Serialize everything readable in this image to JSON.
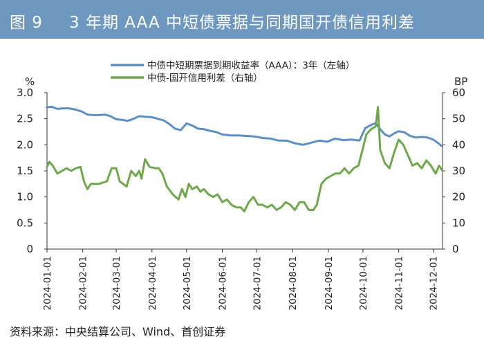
{
  "header": {
    "figure_number": "图 9",
    "title": "3 年期 AAA 中短债票据与同期国开债信用利差"
  },
  "source": "资料来源：中央结算公司、Wind、首创证券",
  "colors": {
    "title_bar": "#6e98bf",
    "series_blue": "#5b8fc7",
    "series_green": "#6fa84a"
  },
  "chart_data": {
    "type": "line",
    "x_tick_labels": [
      "2024-01-01",
      "2024-02-01",
      "2024-03-01",
      "2024-04-01",
      "2024-05-01",
      "2024-06-01",
      "2024-07-01",
      "2024-08-01",
      "2024-09-01",
      "2024-10-01",
      "2024-11-01",
      "2024-12-01"
    ],
    "left_axis": {
      "unit": "%",
      "ylim": [
        0,
        3.0
      ],
      "ticks": [
        "0",
        "0.5",
        "1.0",
        "1.5",
        "2.0",
        "2.5",
        "3.0"
      ]
    },
    "right_axis": {
      "unit": "BP",
      "ylim": [
        0,
        60
      ],
      "ticks": [
        "0",
        "10",
        "20",
        "30",
        "40",
        "50",
        "60"
      ]
    },
    "legend_position": "top-center",
    "series": [
      {
        "name": "中债中短期票据到期收益率（AAA）：3年（左轴）",
        "axis": "left",
        "color": "#5b8fc7",
        "points": [
          [
            "2024-01-01",
            2.72
          ],
          [
            "2024-01-05",
            2.73
          ],
          [
            "2024-01-10",
            2.69
          ],
          [
            "2024-01-15",
            2.7
          ],
          [
            "2024-01-20",
            2.7
          ],
          [
            "2024-01-25",
            2.68
          ],
          [
            "2024-01-31",
            2.64
          ],
          [
            "2024-02-05",
            2.58
          ],
          [
            "2024-02-10",
            2.57
          ],
          [
            "2024-02-15",
            2.57
          ],
          [
            "2024-02-20",
            2.58
          ],
          [
            "2024-02-25",
            2.55
          ],
          [
            "2024-03-01",
            2.49
          ],
          [
            "2024-03-06",
            2.48
          ],
          [
            "2024-03-11",
            2.46
          ],
          [
            "2024-03-16",
            2.5
          ],
          [
            "2024-03-21",
            2.55
          ],
          [
            "2024-03-26",
            2.54
          ],
          [
            "2024-04-01",
            2.53
          ],
          [
            "2024-04-06",
            2.5
          ],
          [
            "2024-04-11",
            2.47
          ],
          [
            "2024-04-16",
            2.4
          ],
          [
            "2024-04-21",
            2.31
          ],
          [
            "2024-04-26",
            2.28
          ],
          [
            "2024-05-01",
            2.41
          ],
          [
            "2024-05-06",
            2.37
          ],
          [
            "2024-05-11",
            2.31
          ],
          [
            "2024-05-16",
            2.3
          ],
          [
            "2024-05-21",
            2.27
          ],
          [
            "2024-05-26",
            2.25
          ],
          [
            "2024-06-01",
            2.2
          ],
          [
            "2024-06-08",
            2.18
          ],
          [
            "2024-06-15",
            2.18
          ],
          [
            "2024-06-22",
            2.17
          ],
          [
            "2024-06-29",
            2.16
          ],
          [
            "2024-07-06",
            2.13
          ],
          [
            "2024-07-13",
            2.12
          ],
          [
            "2024-07-20",
            2.08
          ],
          [
            "2024-07-27",
            2.08
          ],
          [
            "2024-08-03",
            2.03
          ],
          [
            "2024-08-10",
            2.0
          ],
          [
            "2024-08-17",
            2.04
          ],
          [
            "2024-08-24",
            2.08
          ],
          [
            "2024-08-31",
            2.06
          ],
          [
            "2024-09-07",
            2.12
          ],
          [
            "2024-09-14",
            2.09
          ],
          [
            "2024-09-21",
            2.1
          ],
          [
            "2024-09-28",
            2.08
          ],
          [
            "2024-10-03",
            2.32
          ],
          [
            "2024-10-08",
            2.38
          ],
          [
            "2024-10-12",
            2.42
          ],
          [
            "2024-10-16",
            2.3
          ],
          [
            "2024-10-20",
            2.2
          ],
          [
            "2024-10-24",
            2.16
          ],
          [
            "2024-10-28",
            2.22
          ],
          [
            "2024-11-01",
            2.26
          ],
          [
            "2024-11-06",
            2.24
          ],
          [
            "2024-11-11",
            2.17
          ],
          [
            "2024-11-16",
            2.14
          ],
          [
            "2024-11-21",
            2.15
          ],
          [
            "2024-11-26",
            2.14
          ],
          [
            "2024-12-01",
            2.1
          ],
          [
            "2024-12-06",
            2.02
          ],
          [
            "2024-12-08",
            1.98
          ]
        ]
      },
      {
        "name": "中债-国开信用利差（右轴）",
        "axis": "right",
        "color": "#6fa84a",
        "points": [
          [
            "2024-01-01",
            31.5
          ],
          [
            "2024-01-03",
            33.5
          ],
          [
            "2024-01-06",
            32
          ],
          [
            "2024-01-10",
            29
          ],
          [
            "2024-01-14",
            30
          ],
          [
            "2024-01-18",
            31
          ],
          [
            "2024-01-22",
            30
          ],
          [
            "2024-01-26",
            31
          ],
          [
            "2024-01-30",
            31.5
          ],
          [
            "2024-02-02",
            26
          ],
          [
            "2024-02-05",
            23
          ],
          [
            "2024-02-08",
            25
          ],
          [
            "2024-02-15",
            25
          ],
          [
            "2024-02-22",
            26
          ],
          [
            "2024-02-26",
            31
          ],
          [
            "2024-03-01",
            31
          ],
          [
            "2024-03-04",
            26
          ],
          [
            "2024-03-07",
            25
          ],
          [
            "2024-03-10",
            24
          ],
          [
            "2024-03-14",
            30
          ],
          [
            "2024-03-18",
            28
          ],
          [
            "2024-03-21",
            30
          ],
          [
            "2024-03-23",
            27
          ],
          [
            "2024-03-26",
            34.5
          ],
          [
            "2024-03-30",
            31.5
          ],
          [
            "2024-04-04",
            31
          ],
          [
            "2024-04-07",
            31
          ],
          [
            "2024-04-10",
            29
          ],
          [
            "2024-04-14",
            24
          ],
          [
            "2024-04-19",
            21
          ],
          [
            "2024-04-24",
            19
          ],
          [
            "2024-04-27",
            23
          ],
          [
            "2024-04-30",
            20
          ],
          [
            "2024-05-03",
            25
          ],
          [
            "2024-05-06",
            23
          ],
          [
            "2024-05-10",
            24
          ],
          [
            "2024-05-13",
            22
          ],
          [
            "2024-05-16",
            23
          ],
          [
            "2024-05-20",
            21
          ],
          [
            "2024-05-24",
            20
          ],
          [
            "2024-05-28",
            21
          ],
          [
            "2024-06-01",
            18
          ],
          [
            "2024-06-05",
            19
          ],
          [
            "2024-06-09",
            17
          ],
          [
            "2024-06-13",
            16
          ],
          [
            "2024-06-17",
            16
          ],
          [
            "2024-06-20",
            14.5
          ],
          [
            "2024-06-24",
            18
          ],
          [
            "2024-06-28",
            20
          ],
          [
            "2024-07-02",
            17
          ],
          [
            "2024-07-06",
            17
          ],
          [
            "2024-07-10",
            16
          ],
          [
            "2024-07-14",
            17
          ],
          [
            "2024-07-18",
            15
          ],
          [
            "2024-07-22",
            16
          ],
          [
            "2024-07-26",
            18
          ],
          [
            "2024-07-30",
            17
          ],
          [
            "2024-08-03",
            15
          ],
          [
            "2024-08-07",
            18
          ],
          [
            "2024-08-11",
            18
          ],
          [
            "2024-08-15",
            15
          ],
          [
            "2024-08-19",
            15
          ],
          [
            "2024-08-22",
            17
          ],
          [
            "2024-08-26",
            25
          ],
          [
            "2024-08-30",
            27
          ],
          [
            "2024-09-03",
            28
          ],
          [
            "2024-09-07",
            29
          ],
          [
            "2024-09-11",
            29
          ],
          [
            "2024-09-15",
            31
          ],
          [
            "2024-09-19",
            29
          ],
          [
            "2024-09-23",
            31
          ],
          [
            "2024-09-27",
            32
          ],
          [
            "2024-09-30",
            37
          ],
          [
            "2024-10-04",
            44
          ],
          [
            "2024-10-08",
            46
          ],
          [
            "2024-10-12",
            47
          ],
          [
            "2024-10-14",
            54.5
          ],
          [
            "2024-10-16",
            38
          ],
          [
            "2024-10-20",
            33
          ],
          [
            "2024-10-24",
            31
          ],
          [
            "2024-10-28",
            37
          ],
          [
            "2024-11-01",
            42
          ],
          [
            "2024-11-05",
            40
          ],
          [
            "2024-11-09",
            36
          ],
          [
            "2024-11-13",
            32
          ],
          [
            "2024-11-17",
            33
          ],
          [
            "2024-11-21",
            31
          ],
          [
            "2024-11-25",
            34
          ],
          [
            "2024-11-29",
            32
          ],
          [
            "2024-12-03",
            29
          ],
          [
            "2024-12-06",
            32
          ],
          [
            "2024-12-09",
            30
          ]
        ]
      }
    ]
  }
}
